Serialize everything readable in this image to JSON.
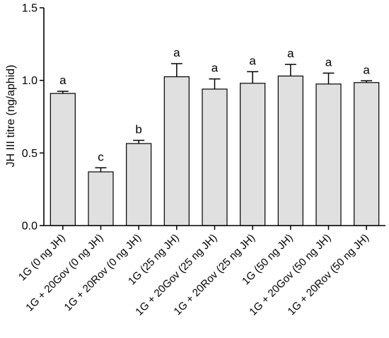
{
  "chart_data": {
    "type": "bar",
    "title": "",
    "xlabel": "",
    "ylabel": "JH III titre (ng/aphid)",
    "ylim": [
      0,
      1.5
    ],
    "yticks": [
      "0.0",
      "0.5",
      "1.0",
      "1.5"
    ],
    "grid": false,
    "categories": [
      "1G (0 ng JH)",
      "1G + 20Gov (0 ng JH)",
      "1G + 20Rov (0 ng JH)",
      "1G (25 ng JH)",
      "1G + 20Gov (25 ng JH)",
      "1G + 20Rov (25 ng JH)",
      "1G (50 ng JH)",
      "1G + 20Gov (50 ng JH)",
      "1G + 20Rov (50 ng JH)"
    ],
    "values": [
      0.91,
      0.37,
      0.565,
      1.025,
      0.94,
      0.98,
      1.03,
      0.975,
      0.985
    ],
    "errors": [
      0.015,
      0.028,
      0.022,
      0.09,
      0.07,
      0.08,
      0.08,
      0.075,
      0.012
    ],
    "significance": [
      "a",
      "c",
      "b",
      "a",
      "a",
      "a",
      "a",
      "a",
      "a"
    ],
    "bar_color": "#e0e0e0",
    "edge_color": "#000000"
  }
}
